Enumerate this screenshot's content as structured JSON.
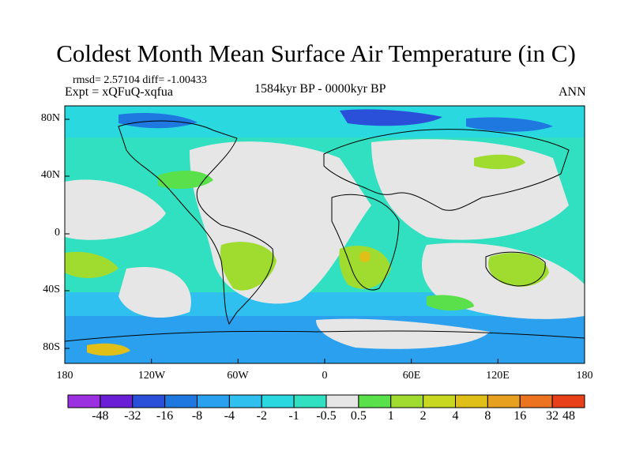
{
  "title": "Coldest Month Mean Surface Air Temperature (in C)",
  "stats": "rmsd= 2.57104  diff= -1.00433",
  "experiment": "Expt = xQFuQ-xqfua",
  "period": "1584kyr BP - 0000kyr BP",
  "season": "ANN",
  "lat_ticks": [
    "80N",
    "40N",
    "0",
    "40S",
    "80S"
  ],
  "lon_ticks": [
    "180",
    "120W",
    "60W",
    "0",
    "60E",
    "120E",
    "180"
  ],
  "colorbar": {
    "colors": [
      "#9b30e0",
      "#6a1fd6",
      "#2a4fd8",
      "#1f78e0",
      "#2aa0ee",
      "#30c0f0",
      "#2ad8e0",
      "#30e0c0",
      "#e6e6e6",
      "#59e04a",
      "#a0dc30",
      "#c8d820",
      "#e0c018",
      "#e8a020",
      "#ec7420",
      "#e84018"
    ],
    "labels": [
      "-48",
      "-32",
      "-16",
      "-8",
      "-4",
      "-2",
      "-1",
      "-0.5",
      "0.5",
      "1",
      "2",
      "4",
      "8",
      "16",
      "32",
      "48"
    ]
  }
}
